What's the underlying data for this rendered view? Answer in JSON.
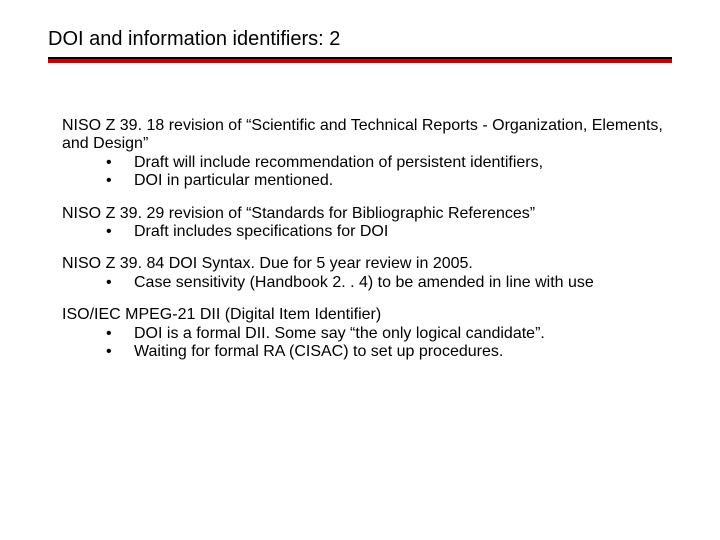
{
  "title": "DOI and information identifiers: 2",
  "colors": {
    "rule_black": "#000000",
    "rule_red": "#cc0000",
    "text": "#000000",
    "background": "#ffffff"
  },
  "typography": {
    "font_family": "Comic Sans MS",
    "title_fontsize_pt": 20,
    "body_fontsize_pt": 16,
    "line_height": 1.15
  },
  "sections": [
    {
      "lead": "NISO Z 39. 18 revision of “Scientific and Technical Reports - Organization, Elements, and Design”",
      "bullets": [
        "Draft will include recommendation of persistent identifiers,",
        "DOI in particular mentioned."
      ]
    },
    {
      "lead": "NISO Z 39. 29 revision of “Standards for Bibliographic References”",
      "bullets": [
        "Draft includes specifications for DOI"
      ]
    },
    {
      "lead": "NISO Z 39. 84 DOI Syntax.   Due for 5 year review in 2005.",
      "bullets": [
        "Case sensitivity (Handbook 2. . 4) to be amended in line with use"
      ]
    },
    {
      "lead": "ISO/IEC MPEG-21 DII (Digital Item Identifier)",
      "bullets": [
        "DOI is a formal DII.  Some say “the only logical candidate”.",
        "Waiting for formal RA (CISAC) to set up procedures."
      ]
    }
  ]
}
